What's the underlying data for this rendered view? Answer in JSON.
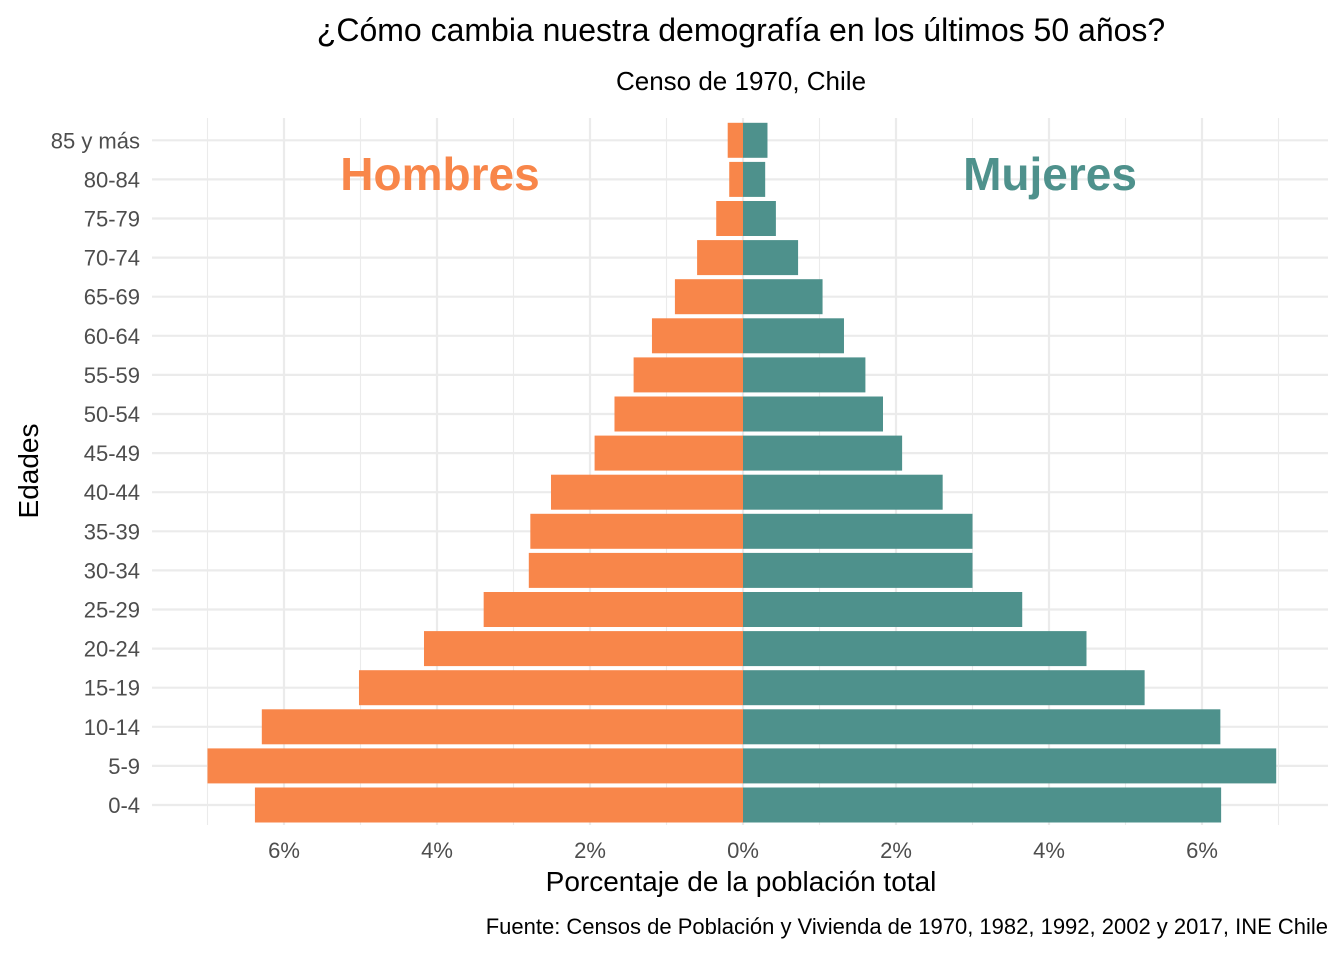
{
  "chart_data": {
    "type": "bar",
    "orientation": "horizontal",
    "title": "¿Cómo cambia nuestra demografía en los últimos 50 años?",
    "subtitle": "Censo de 1970, Chile",
    "xlabel": "Porcentaje de la población total",
    "ylabel": "Edades",
    "caption": "Fuente: Censos de Población y Vivienda de 1970, 1982, 1992, 2002 y 2017, INE Chile",
    "x_ticks": [
      {
        "value": -6,
        "label": "6%"
      },
      {
        "value": -4,
        "label": "4%"
      },
      {
        "value": -2,
        "label": "2%"
      },
      {
        "value": 0,
        "label": "0%"
      },
      {
        "value": 2,
        "label": "2%"
      },
      {
        "value": 4,
        "label": "4%"
      },
      {
        "value": 6,
        "label": "6%"
      }
    ],
    "xlim": [
      -7.0,
      7.0
    ],
    "grid": true,
    "categories": [
      "0-4",
      "5-9",
      "10-14",
      "15-19",
      "20-24",
      "25-29",
      "30-34",
      "35-39",
      "40-44",
      "45-49",
      "50-54",
      "55-59",
      "60-64",
      "65-69",
      "70-74",
      "75-79",
      "80-84",
      "85 y más"
    ],
    "series": [
      {
        "name": "Hombres",
        "color": "#F8864A",
        "values": [
          6.38,
          7.0,
          6.29,
          5.02,
          4.17,
          3.39,
          2.8,
          2.78,
          2.51,
          1.94,
          1.68,
          1.43,
          1.19,
          0.89,
          0.6,
          0.35,
          0.18,
          0.2
        ]
      },
      {
        "name": "Mujeres",
        "color": "#4E918C",
        "values": [
          6.25,
          6.97,
          6.24,
          5.25,
          4.49,
          3.65,
          3.0,
          3.0,
          2.61,
          2.08,
          1.83,
          1.6,
          1.32,
          1.04,
          0.72,
          0.43,
          0.29,
          0.32
        ]
      }
    ]
  }
}
